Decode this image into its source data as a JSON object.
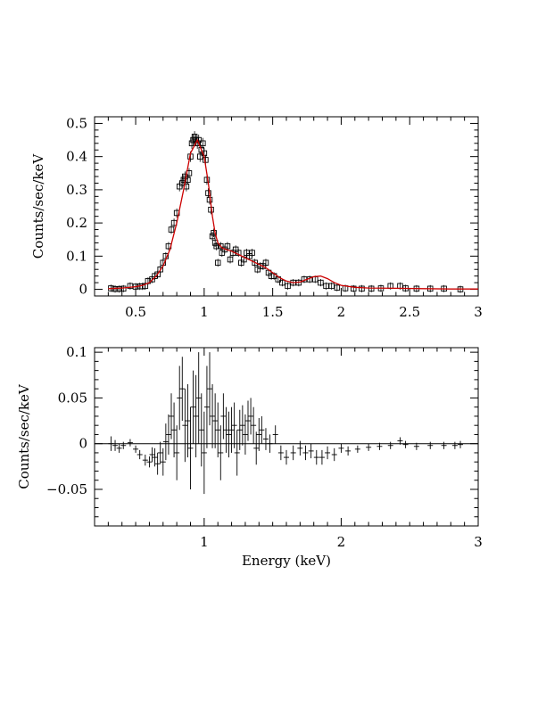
{
  "chart_data": [
    {
      "type": "scatter",
      "panel": "top",
      "title": "",
      "xlabel": "",
      "ylabel": "Counts/sec/keV",
      "xlim": [
        0.2,
        3.0
      ],
      "ylim": [
        -0.02,
        0.52
      ],
      "xticks": [
        0.5,
        1,
        1.5,
        2,
        2.5,
        3
      ],
      "xtick_labels": [
        "0.5",
        "1",
        "1.5",
        "2",
        "2.5",
        "3"
      ],
      "yticks": [
        0,
        0.1,
        0.2,
        0.3,
        0.4,
        0.5
      ],
      "ytick_labels": [
        "0",
        "0.1",
        "0.2",
        "0.3",
        "0.4",
        "0.5"
      ],
      "grid": false,
      "series": [
        {
          "kind": "data-boxes",
          "color": "#000000",
          "x": [
            0.32,
            0.35,
            0.38,
            0.41,
            0.46,
            0.5,
            0.53,
            0.55,
            0.57,
            0.59,
            0.62,
            0.64,
            0.66,
            0.68,
            0.7,
            0.72,
            0.74,
            0.76,
            0.78,
            0.8,
            0.82,
            0.84,
            0.85,
            0.86,
            0.87,
            0.88,
            0.89,
            0.9,
            0.91,
            0.92,
            0.93,
            0.94,
            0.95,
            0.96,
            0.97,
            0.98,
            0.99,
            1.0,
            1.01,
            1.02,
            1.03,
            1.04,
            1.05,
            1.06,
            1.07,
            1.08,
            1.09,
            1.1,
            1.12,
            1.13,
            1.15,
            1.17,
            1.19,
            1.21,
            1.23,
            1.25,
            1.27,
            1.29,
            1.31,
            1.33,
            1.35,
            1.37,
            1.39,
            1.41,
            1.43,
            1.45,
            1.47,
            1.49,
            1.51,
            1.54,
            1.57,
            1.61,
            1.65,
            1.69,
            1.73,
            1.77,
            1.81,
            1.85,
            1.89,
            1.93,
            1.97,
            2.03,
            2.09,
            2.15,
            2.22,
            2.29,
            2.36,
            2.43,
            2.47,
            2.55,
            2.65,
            2.75,
            2.87
          ],
          "y": [
            0.003,
            0.001,
            0.001,
            0.002,
            0.01,
            0.008,
            0.009,
            0.009,
            0.01,
            0.025,
            0.03,
            0.04,
            0.045,
            0.06,
            0.08,
            0.1,
            0.13,
            0.18,
            0.2,
            0.23,
            0.31,
            0.32,
            0.33,
            0.34,
            0.31,
            0.33,
            0.35,
            0.4,
            0.44,
            0.45,
            0.46,
            0.45,
            0.44,
            0.45,
            0.4,
            0.42,
            0.44,
            0.41,
            0.39,
            0.33,
            0.29,
            0.27,
            0.24,
            0.16,
            0.17,
            0.14,
            0.13,
            0.08,
            0.13,
            0.11,
            0.12,
            0.13,
            0.09,
            0.11,
            0.12,
            0.11,
            0.08,
            0.09,
            0.11,
            0.1,
            0.11,
            0.08,
            0.06,
            0.07,
            0.07,
            0.08,
            0.05,
            0.04,
            0.04,
            0.03,
            0.02,
            0.01,
            0.02,
            0.02,
            0.03,
            0.03,
            0.03,
            0.02,
            0.01,
            0.01,
            0.005,
            0.003,
            0.002,
            0.002,
            0.002,
            0.003,
            0.01,
            0.01,
            0.003,
            0.002,
            0.002,
            0.002,
            0.0
          ]
        },
        {
          "kind": "model-line",
          "color": "#cc0000",
          "x": [
            0.3,
            0.4,
            0.5,
            0.55,
            0.6,
            0.65,
            0.7,
            0.75,
            0.8,
            0.85,
            0.9,
            0.95,
            1.0,
            1.03,
            1.06,
            1.08,
            1.1,
            1.13,
            1.16,
            1.2,
            1.25,
            1.3,
            1.35,
            1.4,
            1.45,
            1.5,
            1.55,
            1.6,
            1.65,
            1.7,
            1.75,
            1.8,
            1.85,
            1.9,
            1.95,
            2.0,
            2.1,
            2.2,
            2.4,
            2.6,
            2.8,
            3.0
          ],
          "y": [
            0.002,
            0.004,
            0.008,
            0.012,
            0.02,
            0.04,
            0.07,
            0.12,
            0.2,
            0.3,
            0.41,
            0.45,
            0.4,
            0.32,
            0.22,
            0.17,
            0.14,
            0.125,
            0.12,
            0.115,
            0.105,
            0.095,
            0.085,
            0.075,
            0.065,
            0.05,
            0.035,
            0.025,
            0.02,
            0.022,
            0.03,
            0.038,
            0.04,
            0.032,
            0.02,
            0.012,
            0.006,
            0.004,
            0.003,
            0.002,
            0.001,
            0.001
          ]
        }
      ]
    },
    {
      "type": "scatter",
      "panel": "bottom",
      "title": "",
      "xlabel": "Energy (keV)",
      "ylabel": "Counts/sec/keV",
      "xlim": [
        0.2,
        3.0
      ],
      "ylim": [
        -0.09,
        0.105
      ],
      "xticks": [
        1,
        2,
        3
      ],
      "xtick_labels": [
        "1",
        "2",
        "3"
      ],
      "yticks": [
        -0.05,
        0,
        0.05,
        0.1
      ],
      "ytick_labels": [
        "−0.05",
        "0",
        "0.05",
        "0.1"
      ],
      "grid": false,
      "zero_line": 0,
      "series": [
        {
          "kind": "residual-crosses",
          "color": "#000000",
          "x": [
            0.32,
            0.35,
            0.38,
            0.41,
            0.46,
            0.5,
            0.53,
            0.57,
            0.6,
            0.62,
            0.64,
            0.66,
            0.68,
            0.7,
            0.72,
            0.74,
            0.76,
            0.78,
            0.8,
            0.82,
            0.84,
            0.86,
            0.88,
            0.9,
            0.92,
            0.94,
            0.96,
            0.98,
            1.0,
            1.02,
            1.04,
            1.06,
            1.08,
            1.1,
            1.12,
            1.14,
            1.16,
            1.18,
            1.2,
            1.22,
            1.24,
            1.26,
            1.28,
            1.3,
            1.32,
            1.34,
            1.36,
            1.38,
            1.4,
            1.42,
            1.45,
            1.48,
            1.52,
            1.56,
            1.6,
            1.65,
            1.7,
            1.74,
            1.78,
            1.82,
            1.86,
            1.9,
            1.95,
            2.0,
            2.05,
            2.12,
            2.2,
            2.28,
            2.36,
            2.43,
            2.47,
            2.55,
            2.65,
            2.75,
            2.83,
            2.87
          ],
          "y": [
            0.0,
            -0.002,
            -0.005,
            -0.002,
            0.001,
            -0.006,
            -0.012,
            -0.018,
            -0.02,
            -0.012,
            -0.015,
            -0.022,
            -0.01,
            -0.02,
            0.002,
            0.01,
            0.03,
            0.015,
            -0.01,
            0.05,
            0.06,
            0.02,
            0.025,
            -0.005,
            0.04,
            0.03,
            0.05,
            0.015,
            -0.01,
            0.04,
            0.06,
            0.03,
            0.025,
            0.015,
            -0.01,
            0.03,
            0.015,
            0.01,
            0.015,
            0.02,
            -0.01,
            0.015,
            0.02,
            0.01,
            0.025,
            0.03,
            0.02,
            -0.005,
            0.01,
            0.015,
            0.005,
            0.0,
            0.01,
            -0.01,
            -0.015,
            -0.01,
            -0.005,
            -0.01,
            -0.008,
            -0.015,
            -0.015,
            -0.01,
            -0.012,
            -0.005,
            -0.008,
            -0.006,
            -0.004,
            -0.003,
            -0.002,
            0.003,
            -0.001,
            -0.003,
            -0.002,
            -0.002,
            -0.002,
            -0.001
          ],
          "yerr": [
            0.008,
            0.006,
            0.005,
            0.004,
            0.004,
            0.004,
            0.005,
            0.006,
            0.006,
            0.008,
            0.01,
            0.012,
            0.012,
            0.015,
            0.02,
            0.022,
            0.025,
            0.03,
            0.03,
            0.035,
            0.035,
            0.04,
            0.04,
            0.045,
            0.04,
            0.045,
            0.05,
            0.04,
            0.045,
            0.045,
            0.04,
            0.035,
            0.03,
            0.03,
            0.03,
            0.025,
            0.025,
            0.025,
            0.025,
            0.025,
            0.025,
            0.022,
            0.022,
            0.022,
            0.022,
            0.02,
            0.02,
            0.018,
            0.018,
            0.015,
            0.012,
            0.01,
            0.01,
            0.008,
            0.008,
            0.008,
            0.008,
            0.008,
            0.008,
            0.008,
            0.008,
            0.007,
            0.007,
            0.005,
            0.005,
            0.004,
            0.004,
            0.004,
            0.004,
            0.004,
            0.004,
            0.004,
            0.004,
            0.004,
            0.004,
            0.004
          ]
        }
      ]
    }
  ]
}
